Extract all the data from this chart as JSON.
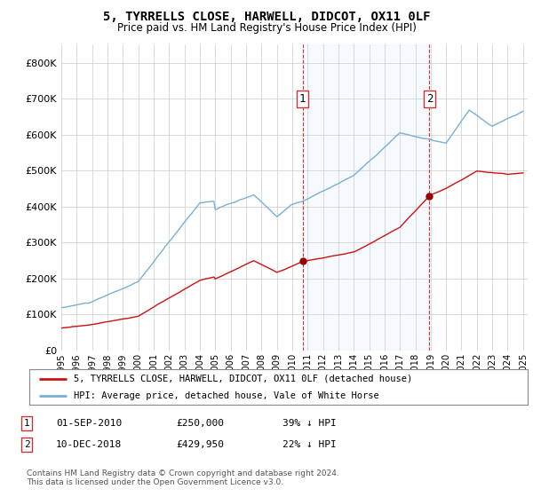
{
  "title": "5, TYRRELLS CLOSE, HARWELL, DIDCOT, OX11 0LF",
  "subtitle": "Price paid vs. HM Land Registry's House Price Index (HPI)",
  "legend_line1": "5, TYRRELLS CLOSE, HARWELL, DIDCOT, OX11 0LF (detached house)",
  "legend_line2": "HPI: Average price, detached house, Vale of White Horse",
  "transaction1_date": "01-SEP-2010",
  "transaction1_price": "£250,000",
  "transaction1_hpi": "39% ↓ HPI",
  "transaction2_date": "10-DEC-2018",
  "transaction2_price": "£429,950",
  "transaction2_hpi": "22% ↓ HPI",
  "footer": "Contains HM Land Registry data © Crown copyright and database right 2024.\nThis data is licensed under the Open Government Licence v3.0.",
  "hpi_color": "#7aafd4",
  "price_color": "#cc1111",
  "marker_color": "#990000",
  "dashed_line_color": "#cc3333",
  "figure_bg": "#ffffff",
  "plot_bg": "#ffffff",
  "shade_color": "#ddeeff",
  "ylim_max": 850000,
  "yticks": [
    0,
    100000,
    200000,
    300000,
    400000,
    500000,
    600000,
    700000,
    800000
  ],
  "t1_x": 2010.67,
  "t1_y": 250000,
  "t2_x": 2018.92,
  "t2_y": 429950,
  "xlim_min": 1995.0,
  "xlim_max": 2025.3
}
